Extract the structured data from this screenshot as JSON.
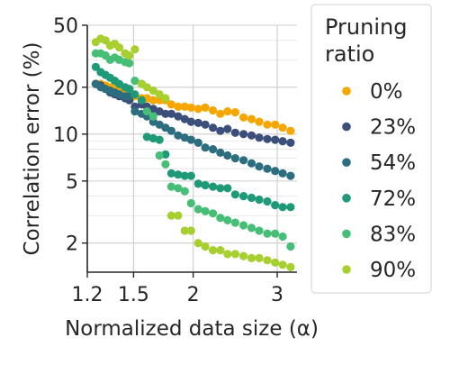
{
  "chart_data": {
    "type": "scatter",
    "xlabel": "Normalized data size (α)",
    "ylabel": "Correlation error (%)",
    "xscale": "log",
    "yscale": "log",
    "xlim": [
      1.2,
      3.3
    ],
    "ylim": [
      1.3,
      50
    ],
    "x_ticks": [
      1.2,
      1.5,
      2,
      3
    ],
    "x_tick_labels": [
      "1.2",
      "1.5",
      "2",
      "3"
    ],
    "y_ticks": [
      2,
      5,
      10,
      20,
      50
    ],
    "y_tick_labels": [
      "2",
      "5",
      "10",
      "20",
      "50"
    ],
    "grid": true,
    "legend": {
      "title": "Pruning ratio",
      "placement": "right"
    },
    "series": [
      {
        "name": "0%",
        "color": "#f5a700",
        "x": [
          1.25,
          1.28,
          1.31,
          1.34,
          1.37,
          1.4,
          1.44,
          1.47,
          1.51,
          1.56,
          1.6,
          1.65,
          1.7,
          1.75,
          1.8,
          1.86,
          1.92,
          1.98,
          2.05,
          2.12,
          2.2,
          2.28,
          2.36,
          2.45,
          2.55,
          2.65,
          2.75,
          2.86,
          2.97,
          3.08,
          3.2
        ],
        "y": [
          21,
          21,
          20.5,
          20,
          19.5,
          19,
          19,
          19.5,
          17.5,
          17,
          17,
          16.5,
          16.5,
          16.5,
          15.5,
          15,
          15,
          14.8,
          14.5,
          14.8,
          14.2,
          13.5,
          14,
          13.8,
          12.8,
          12.5,
          12,
          11.5,
          11.5,
          11,
          10.5
        ]
      },
      {
        "name": "23%",
        "color": "#3b4f7a",
        "x": [
          1.25,
          1.28,
          1.31,
          1.34,
          1.37,
          1.4,
          1.44,
          1.47,
          1.51,
          1.56,
          1.6,
          1.65,
          1.7,
          1.75,
          1.8,
          1.86,
          1.92,
          1.98,
          2.05,
          2.12,
          2.2,
          2.28,
          2.36,
          2.45,
          2.55,
          2.65,
          2.75,
          2.86,
          2.97,
          3.08,
          3.2
        ],
        "y": [
          21,
          20.5,
          19.5,
          18.5,
          18,
          17.5,
          17,
          16.5,
          15,
          15.5,
          15,
          14.5,
          14,
          13.5,
          13.5,
          13,
          12.5,
          12,
          11.8,
          11.5,
          11,
          10.5,
          10.8,
          10.2,
          10,
          9.8,
          9.5,
          9.3,
          9.2,
          9,
          8.8
        ]
      },
      {
        "name": "54%",
        "color": "#2c6e7f",
        "x": [
          1.25,
          1.28,
          1.31,
          1.34,
          1.37,
          1.4,
          1.44,
          1.47,
          1.51,
          1.56,
          1.6,
          1.65,
          1.7,
          1.75,
          1.8,
          1.86,
          1.92,
          1.98,
          2.05,
          2.12,
          2.2,
          2.28,
          2.36,
          2.45,
          2.55,
          2.65,
          2.75,
          2.86,
          2.97,
          3.08,
          3.2
        ],
        "y": [
          21,
          20,
          19.5,
          19,
          18.5,
          18,
          17.5,
          17.5,
          14,
          13.5,
          13,
          12,
          11.5,
          11,
          10.5,
          9.8,
          9.5,
          9.2,
          8.8,
          8.2,
          8,
          7.6,
          7.3,
          7,
          6.8,
          6.5,
          6.2,
          6,
          5.8,
          5.6,
          5.4
        ]
      },
      {
        "name": "72%",
        "color": "#1f9a78",
        "x": [
          1.25,
          1.28,
          1.31,
          1.34,
          1.37,
          1.4,
          1.44,
          1.47,
          1.51,
          1.56,
          1.6,
          1.65,
          1.7,
          1.75,
          1.8,
          1.86,
          1.92,
          1.98,
          2.05,
          2.12,
          2.2,
          2.28,
          2.36,
          2.45,
          2.55,
          2.65,
          2.75,
          2.86,
          2.97,
          3.08,
          3.2
        ],
        "y": [
          27,
          25,
          24,
          23,
          22,
          21,
          20,
          19.5,
          18,
          16.5,
          9.6,
          9.4,
          9.2,
          7.4,
          5.6,
          5.5,
          5.4,
          5.4,
          4.8,
          4.7,
          4.6,
          4.5,
          4.5,
          4.1,
          4,
          3.9,
          3.8,
          3.7,
          3.5,
          3.4,
          3.4
        ]
      },
      {
        "name": "83%",
        "color": "#47be76",
        "x": [
          1.25,
          1.28,
          1.31,
          1.34,
          1.37,
          1.4,
          1.44,
          1.47,
          1.51,
          1.56,
          1.6,
          1.65,
          1.7,
          1.75,
          1.8,
          1.86,
          1.92,
          1.98,
          2.05,
          2.12,
          2.2,
          2.28,
          2.36,
          2.45,
          2.55,
          2.65,
          2.75,
          2.86,
          2.97,
          3.08,
          3.2
        ],
        "y": [
          33,
          33,
          32,
          30,
          31,
          30,
          29,
          28.5,
          22,
          21,
          14,
          13,
          7.3,
          6.4,
          4.6,
          4.5,
          4.3,
          3.6,
          3.3,
          3.2,
          3.1,
          2.9,
          2.8,
          2.7,
          2.6,
          2.5,
          2.4,
          2.3,
          2.3,
          2.2,
          1.9
        ]
      },
      {
        "name": "90%",
        "color": "#a6cf2f",
        "x": [
          1.25,
          1.28,
          1.31,
          1.34,
          1.37,
          1.4,
          1.44,
          1.47,
          1.51,
          1.56,
          1.6,
          1.65,
          1.7,
          1.75,
          1.8,
          1.86,
          1.92,
          1.98,
          2.05,
          2.12,
          2.2,
          2.28,
          2.36,
          2.45,
          2.55,
          2.65,
          2.75,
          2.86,
          2.97,
          3.08,
          3.2
        ],
        "y": [
          39,
          41,
          40,
          37,
          38,
          36,
          33,
          32,
          35,
          21,
          20,
          19,
          18,
          17,
          3.0,
          3.0,
          2.4,
          2.4,
          2.0,
          1.9,
          1.8,
          1.8,
          1.7,
          1.7,
          1.65,
          1.6,
          1.6,
          1.55,
          1.5,
          1.45,
          1.4
        ]
      }
    ]
  }
}
